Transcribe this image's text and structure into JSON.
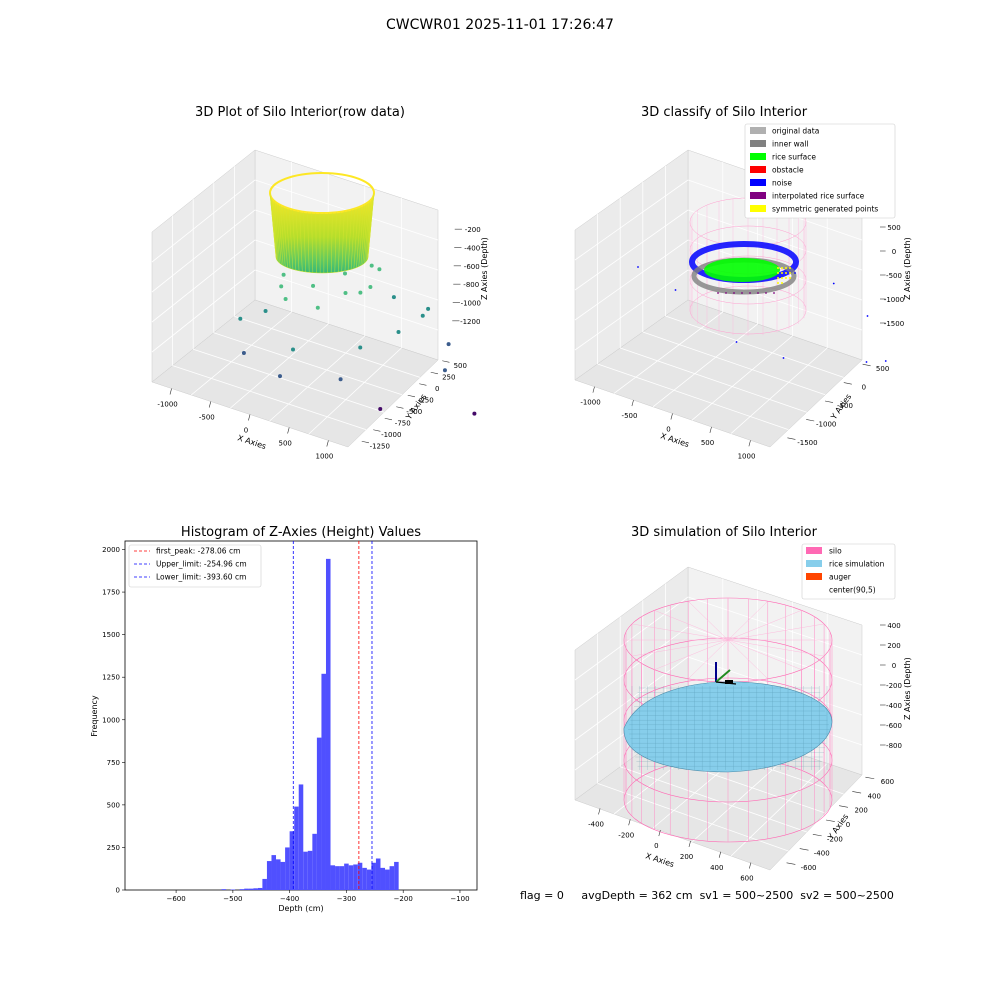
{
  "figure": {
    "suptitle": "CWCWR01 2025-11-01 17:26:47",
    "status": {
      "flag": "flag = 0",
      "avg_depth": "avgDepth = 362 cm",
      "sv1": "sv1 = 500~2500",
      "sv2": "sv2 = 500~2500"
    }
  },
  "chart_data": [
    {
      "type": "scatter",
      "title": "3D Plot of Silo Interior(row data)",
      "xlabel": "X Axies",
      "ylabel": "Y Axies",
      "zlabel": "Z Axies (Depth)",
      "x_ticks": [
        -1000,
        -500,
        0,
        500,
        1000
      ],
      "y_ticks": [
        500,
        250,
        0,
        -250,
        -500,
        -750,
        -1000,
        -1250
      ],
      "z_ticks": [
        -200,
        -400,
        -600,
        -800,
        -1000,
        -1200
      ],
      "colormap": "viridis",
      "ring": {
        "radius": 520,
        "z_top": -200,
        "z_bottom": -600
      },
      "scatter_points": [
        {
          "x": -620,
          "y": -420,
          "z": -650
        },
        {
          "x": -540,
          "y": -260,
          "z": -630
        },
        {
          "x": -420,
          "y": -140,
          "z": -610
        },
        {
          "x": -360,
          "y": -520,
          "z": -700
        },
        {
          "x": -760,
          "y": -330,
          "z": -720
        },
        {
          "x": -100,
          "y": -560,
          "z": -640
        },
        {
          "x": 120,
          "y": -480,
          "z": -680
        },
        {
          "x": 320,
          "y": -360,
          "z": -700
        },
        {
          "x": 460,
          "y": -200,
          "z": -640
        },
        {
          "x": 520,
          "y": -420,
          "z": -760
        },
        {
          "x": -860,
          "y": -120,
          "z": -800
        },
        {
          "x": -700,
          "y": -620,
          "z": -860
        },
        {
          "x": -150,
          "y": -820,
          "z": -860
        },
        {
          "x": 300,
          "y": -760,
          "z": -840
        },
        {
          "x": 650,
          "y": -640,
          "z": -820
        },
        {
          "x": 880,
          "y": -420,
          "z": -860
        },
        {
          "x": -980,
          "y": -320,
          "z": -920
        },
        {
          "x": -900,
          "y": -700,
          "z": -960
        },
        {
          "x": -420,
          "y": -900,
          "z": -980
        },
        {
          "x": 560,
          "y": -1050,
          "z": -1000
        },
        {
          "x": 780,
          "y": -820,
          "z": -940
        },
        {
          "x": -200,
          "y": -1150,
          "z": -1100
        },
        {
          "x": 720,
          "y": -1240,
          "z": -1200
        },
        {
          "x": 100,
          "y": -300,
          "z": -620
        },
        {
          "x": -260,
          "y": -330,
          "z": -640
        },
        {
          "x": 620,
          "y": -100,
          "z": -700
        }
      ]
    },
    {
      "type": "scatter",
      "title": "3D classify of Silo Interior",
      "xlabel": "X Axies",
      "ylabel": "Y Axies",
      "zlabel": "Z Axies (Depth)",
      "x_ticks": [
        -1000,
        -500,
        0,
        500,
        1000
      ],
      "y_ticks": [
        500,
        0,
        -500,
        -1000,
        -1500
      ],
      "z_ticks": [
        500,
        0,
        -500,
        -1000,
        -1500
      ],
      "legend": [
        {
          "label": "original data",
          "color": "#b0b0b0"
        },
        {
          "label": "inner wall",
          "color": "#808080"
        },
        {
          "label": "rice surface",
          "color": "#00ff00"
        },
        {
          "label": "obstacle",
          "color": "#ff0000"
        },
        {
          "label": "noise",
          "color": "#0000ff"
        },
        {
          "label": "interpolated rice surface",
          "color": "#800080"
        },
        {
          "label": "symmetric generated points",
          "color": "#ffff00"
        }
      ],
      "silo": {
        "radius": 600,
        "z_top": 0,
        "z_bottom": -1500
      },
      "noise_points": [
        {
          "x": -900,
          "y": -300,
          "z": -900
        },
        {
          "x": -700,
          "y": -900,
          "z": -1300
        },
        {
          "x": 900,
          "y": -600,
          "z": -1100
        },
        {
          "x": 650,
          "y": -1200,
          "z": -1400
        },
        {
          "x": -500,
          "y": -1300,
          "z": -1300
        },
        {
          "x": 950,
          "y": -50,
          "z": -950
        },
        {
          "x": -1000,
          "y": 100,
          "z": -800
        },
        {
          "x": 300,
          "y": -1400,
          "z": -1300
        },
        {
          "x": 800,
          "y": 300,
          "z": -1000
        }
      ]
    },
    {
      "type": "bar",
      "title": "Histogram of Z-Axies (Height) Values",
      "xlabel": "Depth (cm)",
      "ylabel": "Frequency",
      "xlim": [
        -690,
        -70
      ],
      "ylim": [
        0,
        2050
      ],
      "x_ticks": [
        -600,
        -500,
        -400,
        -300,
        -200,
        -100
      ],
      "y_ticks": [
        0,
        250,
        500,
        750,
        1000,
        1250,
        1500,
        1750,
        2000
      ],
      "bin_width": 8,
      "bins": [
        {
          "start": -520,
          "value": 5
        },
        {
          "start": -512,
          "value": 0
        },
        {
          "start": -504,
          "value": 3
        },
        {
          "start": -496,
          "value": 0
        },
        {
          "start": -488,
          "value": 5
        },
        {
          "start": -480,
          "value": 8
        },
        {
          "start": -472,
          "value": 8
        },
        {
          "start": -464,
          "value": 10
        },
        {
          "start": -456,
          "value": 12
        },
        {
          "start": -448,
          "value": 65
        },
        {
          "start": -440,
          "value": 170
        },
        {
          "start": -432,
          "value": 205
        },
        {
          "start": -424,
          "value": 180
        },
        {
          "start": -416,
          "value": 165
        },
        {
          "start": -408,
          "value": 250
        },
        {
          "start": -400,
          "value": 345
        },
        {
          "start": -392,
          "value": 490
        },
        {
          "start": -384,
          "value": 620
        },
        {
          "start": -376,
          "value": 225
        },
        {
          "start": -368,
          "value": 230
        },
        {
          "start": -360,
          "value": 330
        },
        {
          "start": -352,
          "value": 895
        },
        {
          "start": -344,
          "value": 1270
        },
        {
          "start": -336,
          "value": 1945
        },
        {
          "start": -328,
          "value": 145
        },
        {
          "start": -320,
          "value": 140
        },
        {
          "start": -312,
          "value": 140
        },
        {
          "start": -304,
          "value": 155
        },
        {
          "start": -296,
          "value": 145
        },
        {
          "start": -288,
          "value": 150
        },
        {
          "start": -280,
          "value": 160
        },
        {
          "start": -272,
          "value": 130
        },
        {
          "start": -264,
          "value": 120
        },
        {
          "start": -256,
          "value": 160
        },
        {
          "start": -248,
          "value": 185
        },
        {
          "start": -240,
          "value": 130
        },
        {
          "start": -232,
          "value": 120
        },
        {
          "start": -224,
          "value": 140
        },
        {
          "start": -216,
          "value": 165
        }
      ],
      "bar_color": "#5050ff",
      "lines": [
        {
          "label": "first_peak: -278.06 cm",
          "x": -278.06,
          "color": "#ff0000"
        },
        {
          "label": "Upper_limit: -254.96 cm",
          "x": -254.96,
          "color": "#0000ff"
        },
        {
          "label": "Lower_limit: -393.60 cm",
          "x": -393.6,
          "color": "#0000ff"
        }
      ]
    },
    {
      "type": "area",
      "title": "3D simulation of Silo Interior",
      "xlabel": "X Axies",
      "ylabel": "Y Axies",
      "zlabel": "Z Axies (Depth)",
      "x_ticks": [
        -400,
        -200,
        0,
        200,
        400,
        600
      ],
      "y_ticks": [
        600,
        400,
        200,
        0,
        -200,
        -400,
        -600
      ],
      "z_ticks": [
        400,
        200,
        0,
        -200,
        -400,
        -600,
        -800
      ],
      "legend": [
        {
          "label": "silo",
          "color": "#ff69b4"
        },
        {
          "label": "rice simulation",
          "color": "#87ceeb"
        },
        {
          "label": "auger",
          "color": "#ff4500"
        },
        {
          "label": "center(90,5)",
          "color": "#ffffff"
        }
      ],
      "silo": {
        "radius": 600,
        "z_top": 400,
        "z_bottom": -900
      },
      "rice_surface_z": -362
    }
  ]
}
